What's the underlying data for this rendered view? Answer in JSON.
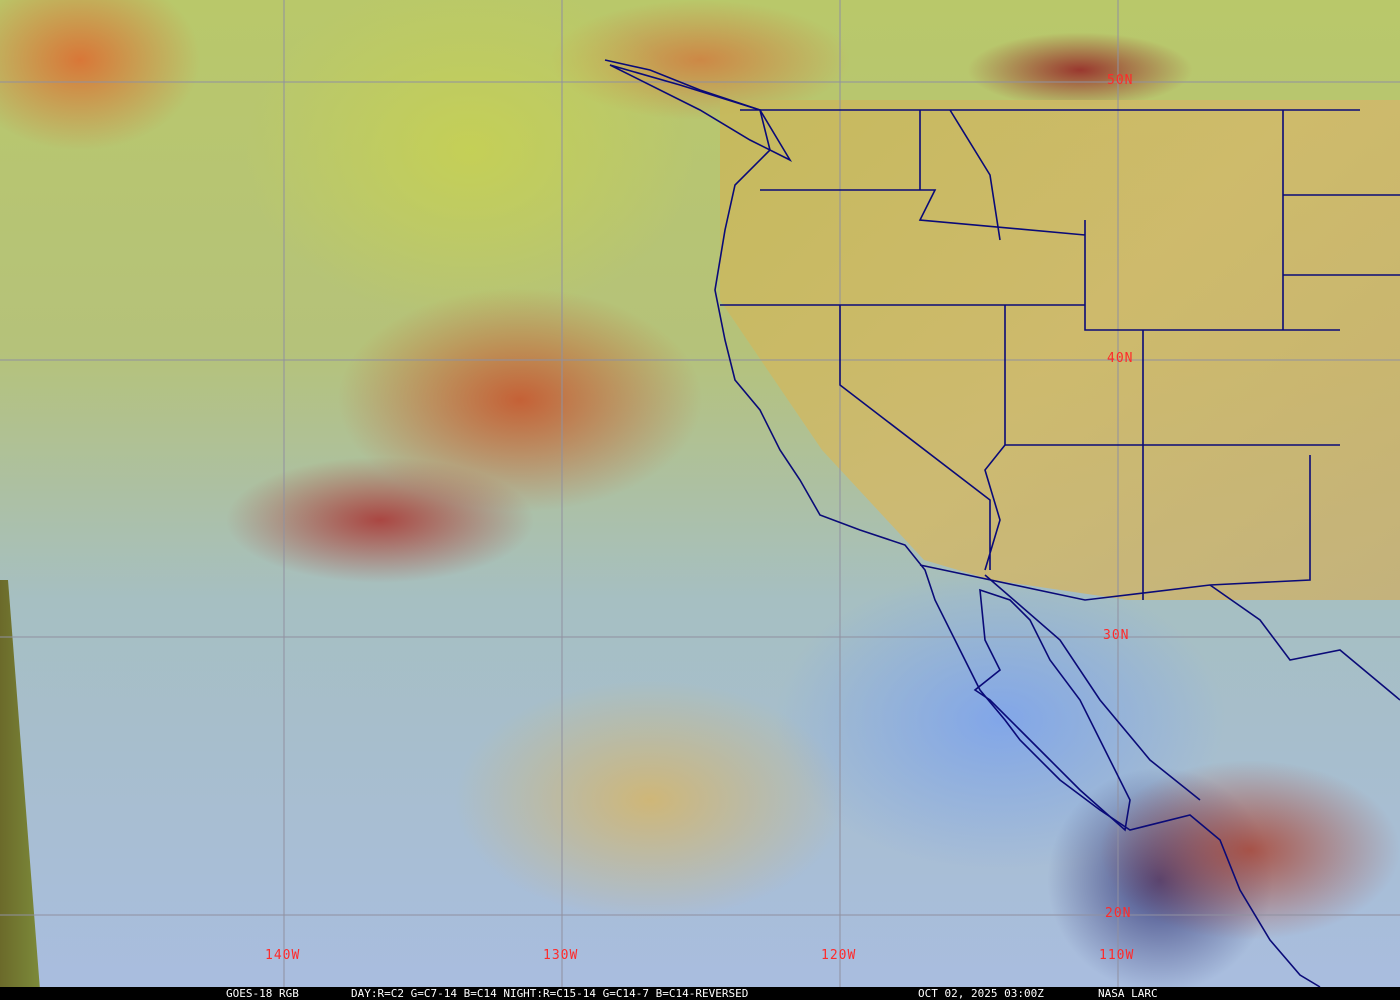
{
  "map": {
    "latitude_labels": [
      "50N",
      "40N",
      "30N",
      "20N"
    ],
    "longitude_labels": [
      "140W",
      "130W",
      "120W",
      "110W"
    ],
    "colors": {
      "grid": "#9090a0",
      "boundaries": "#0a0a78",
      "labels": "#ff2a2a"
    }
  },
  "caption": {
    "product": "GOES-18 RGB",
    "recipe": "DAY:R=C2 G=C7-14 B=C14 NIGHT:R=C15-14 G=C14-7 B=C14-REVERSED",
    "timestamp": "OCT 02, 2025 03:00Z",
    "credit": "NASA LARC"
  }
}
